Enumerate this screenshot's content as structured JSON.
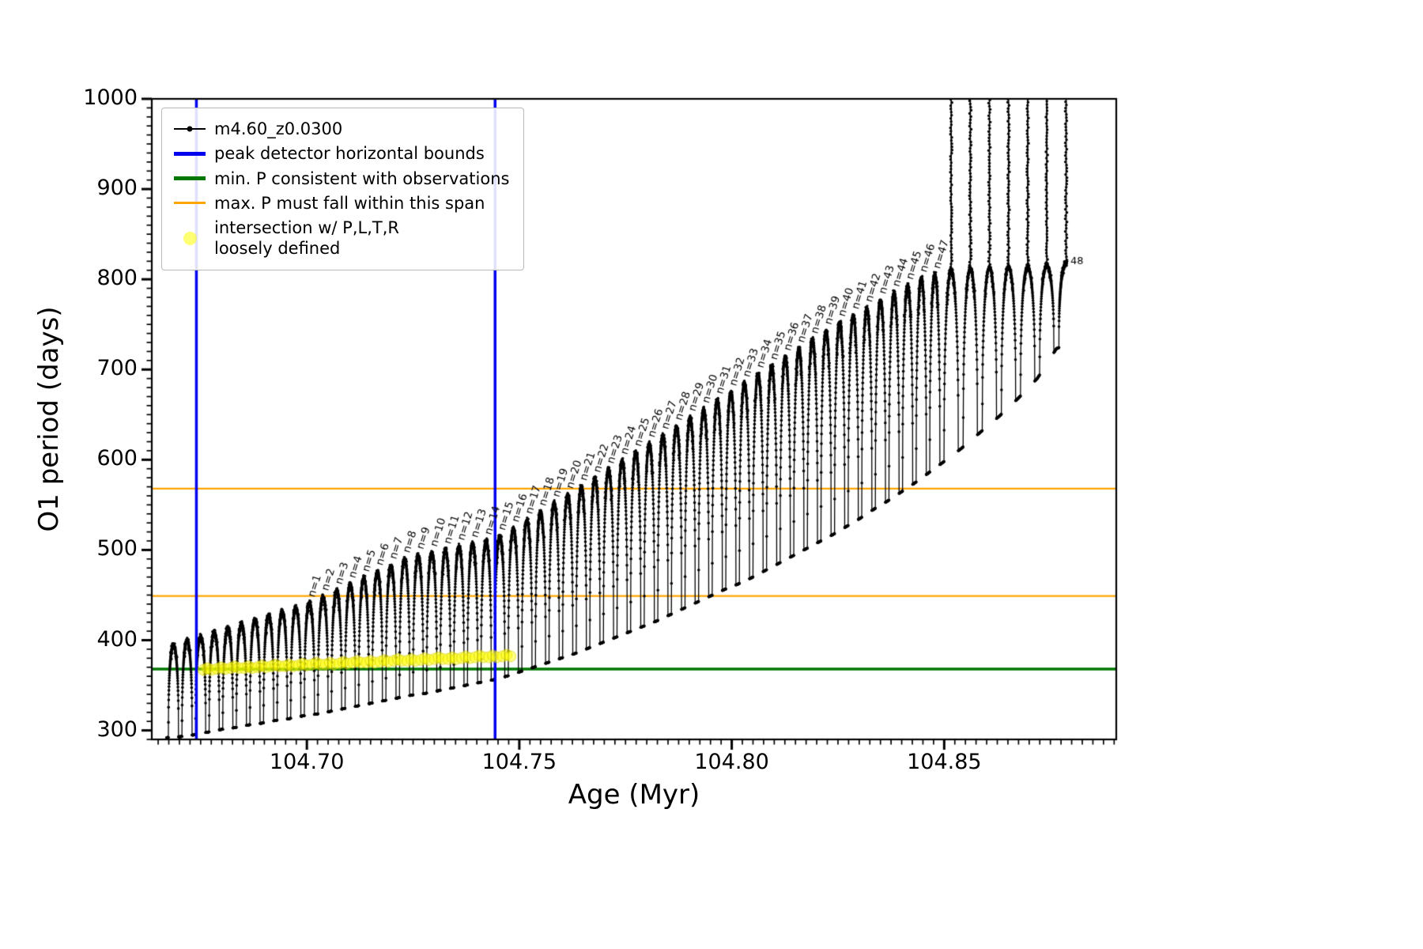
{
  "chart_data": {
    "type": "line",
    "title": "",
    "xlabel": "Age (Myr)",
    "ylabel": "O1 period (days)",
    "xlim": [
      104.6635,
      104.8905
    ],
    "ylim": [
      290,
      1000
    ],
    "xticks": [
      104.7,
      104.75,
      104.8,
      104.85
    ],
    "xtick_labels": [
      "104.70",
      "104.75",
      "104.80",
      "104.85"
    ],
    "x_minor_step": 0.0025,
    "yticks": [
      300,
      400,
      500,
      600,
      700,
      800,
      900,
      1000
    ],
    "ytick_labels": [
      "300",
      "400",
      "500",
      "600",
      "700",
      "800",
      "900",
      "1000"
    ],
    "y_minor_step": 10,
    "grid": false,
    "legend_position": "upper left",
    "series_name": "m4.60_z0.0300",
    "series_color": "#000000",
    "vlines": {
      "label": "peak detector horizontal bounds",
      "color": "#0000ee",
      "x": [
        104.674,
        104.7443
      ]
    },
    "hline_min": {
      "label": "min. P consistent with observations",
      "color": "#007700",
      "y": 368
    },
    "hlines_max": {
      "label": "max. P must fall within this span",
      "color": "#ffa500",
      "y": [
        449,
        568
      ]
    },
    "intersections": {
      "label": "intersection w/ P,L,T,R\nloosely defined",
      "color": "#ffff00",
      "points": [
        [
          104.6766,
          368
        ],
        [
          104.6798,
          369
        ],
        [
          104.683,
          370
        ],
        [
          104.6862,
          370
        ],
        [
          104.6894,
          371
        ],
        [
          104.6926,
          372
        ],
        [
          104.6958,
          372
        ],
        [
          104.699,
          373
        ],
        [
          104.7022,
          374
        ],
        [
          104.7054,
          374
        ],
        [
          104.7086,
          375
        ],
        [
          104.7118,
          376
        ],
        [
          104.715,
          376
        ],
        [
          104.7182,
          377
        ],
        [
          104.7214,
          378
        ],
        [
          104.7246,
          378
        ],
        [
          104.7278,
          379
        ],
        [
          104.731,
          380
        ],
        [
          104.7342,
          380
        ],
        [
          104.7374,
          381
        ],
        [
          104.7406,
          382
        ],
        [
          104.7438,
          382
        ],
        [
          104.747,
          383
        ]
      ]
    },
    "teeth_format": [
      "x_start_Myr",
      "width_Myr",
      "P_min_days",
      "P_peak_days",
      "label",
      "tall_spike"
    ],
    "teeth": [
      [
        104.667,
        0.0032,
        292,
        395,
        null,
        0
      ],
      [
        104.6702,
        0.0032,
        293,
        400,
        null,
        0
      ],
      [
        104.6734,
        0.0032,
        295,
        404,
        null,
        0
      ],
      [
        104.6766,
        0.0032,
        298,
        409,
        null,
        0
      ],
      [
        104.6798,
        0.0032,
        301,
        413,
        null,
        0
      ],
      [
        104.683,
        0.0032,
        303,
        418,
        null,
        0
      ],
      [
        104.6862,
        0.0032,
        306,
        423,
        null,
        0
      ],
      [
        104.6894,
        0.0032,
        308,
        427,
        null,
        0
      ],
      [
        104.6926,
        0.0032,
        311,
        432,
        null,
        0
      ],
      [
        104.6958,
        0.0032,
        313,
        436,
        null,
        0
      ],
      [
        104.699,
        0.0032,
        316,
        441,
        "n=1",
        0
      ],
      [
        104.7022,
        0.0032,
        318,
        448,
        "n=2",
        0
      ],
      [
        104.7054,
        0.0032,
        321,
        455,
        "n=3",
        0
      ],
      [
        104.7086,
        0.0032,
        324,
        462,
        "n=4",
        0
      ],
      [
        104.7118,
        0.0032,
        327,
        469,
        "n=5",
        0
      ],
      [
        104.715,
        0.0032,
        330,
        476,
        "n=6",
        0
      ],
      [
        104.7182,
        0.0032,
        333,
        483,
        "n=7",
        0
      ],
      [
        104.7214,
        0.0032,
        336,
        490,
        "n=8",
        0
      ],
      [
        104.7246,
        0.0032,
        339,
        494,
        "n=9",
        0
      ],
      [
        104.7278,
        0.0032,
        341,
        497,
        "n=10",
        0
      ],
      [
        104.731,
        0.0032,
        344,
        500,
        "n=11",
        0
      ],
      [
        104.7342,
        0.0032,
        347,
        504,
        "n=12",
        0
      ],
      [
        104.7374,
        0.0032,
        350,
        507,
        "n=13",
        0
      ],
      [
        104.7406,
        0.0032,
        353,
        510,
        "n=14",
        0
      ],
      [
        104.7438,
        0.0032,
        356,
        515,
        "n=15",
        0
      ],
      [
        104.747,
        0.0032,
        360,
        524,
        "n=16",
        0
      ],
      [
        104.7502,
        0.0032,
        365,
        533,
        "n=17",
        0
      ],
      [
        104.7534,
        0.0032,
        370,
        542,
        "n=18",
        0
      ],
      [
        104.7566,
        0.0032,
        375,
        552,
        "n=19",
        0
      ],
      [
        104.7598,
        0.0032,
        380,
        561,
        "n=20",
        0
      ],
      [
        104.763,
        0.0032,
        385,
        570,
        "n=21",
        0
      ],
      [
        104.7662,
        0.0032,
        391,
        579,
        "n=22",
        0
      ],
      [
        104.7694,
        0.0032,
        397,
        589,
        "n=23",
        0
      ],
      [
        104.7726,
        0.0032,
        403,
        599,
        "n=24",
        0
      ],
      [
        104.7758,
        0.0032,
        409,
        608,
        "n=25",
        0
      ],
      [
        104.779,
        0.0032,
        415,
        618,
        "n=26",
        0
      ],
      [
        104.7822,
        0.0032,
        421,
        627,
        "n=27",
        0
      ],
      [
        104.7854,
        0.0032,
        428,
        637,
        "n=28",
        0
      ],
      [
        104.7886,
        0.0032,
        435,
        647,
        "n=29",
        0
      ],
      [
        104.7918,
        0.0032,
        442,
        656,
        "n=30",
        0
      ],
      [
        104.795,
        0.0032,
        449,
        666,
        "n=31",
        0
      ],
      [
        104.7982,
        0.0032,
        456,
        675,
        "n=32",
        0
      ],
      [
        104.8014,
        0.0032,
        462,
        685,
        "n=33",
        0
      ],
      [
        104.8046,
        0.0032,
        469,
        695,
        "n=34",
        0
      ],
      [
        104.8078,
        0.0032,
        477,
        704,
        "n=35",
        0
      ],
      [
        104.811,
        0.0032,
        485,
        714,
        "n=36",
        0
      ],
      [
        104.8142,
        0.0032,
        493,
        723,
        "n=37",
        0
      ],
      [
        104.8174,
        0.0032,
        501,
        733,
        "n=38",
        0
      ],
      [
        104.8206,
        0.0032,
        509,
        743,
        "n=39",
        0
      ],
      [
        104.8238,
        0.0032,
        517,
        752,
        "n=40",
        0
      ],
      [
        104.827,
        0.0032,
        526,
        760,
        "n=41",
        0
      ],
      [
        104.8302,
        0.0032,
        535,
        768,
        "n=42",
        0
      ],
      [
        104.8334,
        0.0032,
        545,
        777,
        "n=43",
        0
      ],
      [
        104.8366,
        0.0032,
        554,
        785,
        "n=44",
        0
      ],
      [
        104.8398,
        0.0032,
        564,
        793,
        "n=45",
        0
      ],
      [
        104.843,
        0.0032,
        574,
        801,
        "n=46",
        0
      ],
      [
        104.8462,
        0.0032,
        585,
        805,
        "n=47",
        0
      ],
      [
        104.8494,
        0.0045,
        596,
        810,
        null,
        1
      ],
      [
        104.8539,
        0.0045,
        612,
        812,
        null,
        1
      ],
      [
        104.8584,
        0.0045,
        630,
        813,
        null,
        1
      ],
      [
        104.8629,
        0.0045,
        648,
        814,
        null,
        1
      ],
      [
        104.8674,
        0.0045,
        668,
        814,
        null,
        1
      ],
      [
        104.8719,
        0.0045,
        690,
        815,
        null,
        1
      ],
      [
        104.8764,
        0.0046,
        723,
        818,
        "48",
        1
      ]
    ]
  },
  "legend": {
    "entries": [
      {
        "type": "line-dot",
        "icon": "series-line-icon",
        "color": "#000000",
        "label": "m4.60_z0.0300"
      },
      {
        "type": "line-thick",
        "icon": "blue-vline-icon",
        "color": "#0000ee",
        "label": "peak detector horizontal bounds"
      },
      {
        "type": "line-thick",
        "icon": "green-hline-icon",
        "color": "#007700",
        "label": "min. P consistent with observations"
      },
      {
        "type": "line",
        "icon": "orange-hline-icon",
        "color": "#ffa500",
        "label": "max. P must fall within this span"
      },
      {
        "type": "dot",
        "icon": "yellow-dot-icon",
        "color": "#ffff00",
        "label": "intersection w/ P,L,T,R\nloosely defined"
      }
    ]
  }
}
